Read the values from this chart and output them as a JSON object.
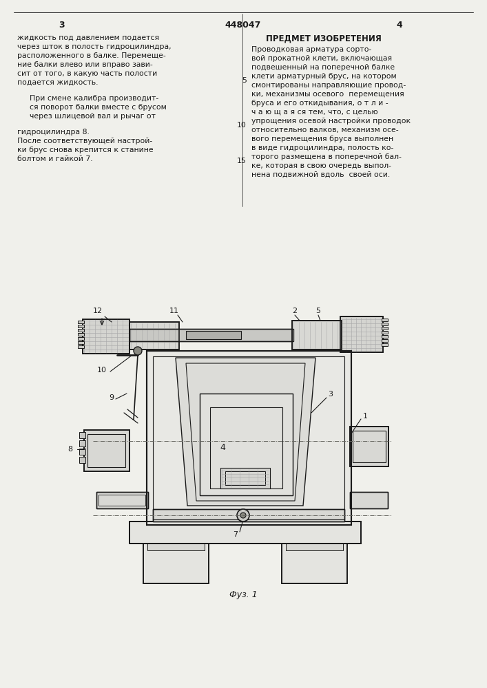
{
  "page_bg": "#f0f0eb",
  "line_color": "#1a1a1a",
  "text_color": "#1a1a1a",
  "page_number_left": "3",
  "page_number_center": "448047",
  "page_number_right": "4",
  "left_column_text": [
    "жидкость под давлением подается",
    "через шток в полость гидроцилиндра,",
    "расположенного в балке. Перемеще-",
    "ние балки влево или вправо зави-",
    "сит от того, в какую часть полости",
    "подается жидкость."
  ],
  "left_column_text2": [
    "При смене калибра производит-",
    "ся поворот балки вместе с брусом",
    "через шлицевой вал и рычаг от"
  ],
  "left_column_text3": [
    "гидроцилиндра 8.",
    "После соответствующей настрой-",
    "ки брус снова крепится к станине",
    "болтом и гайкой 7."
  ],
  "right_title": "ПРЕДМЕТ ИЗОБРЕТЕНИЯ",
  "right_column_text": [
    "Проводковая арматура сорто-",
    "вой прокатной клети, включающая",
    "подвешенный на поперечной балке",
    "клети арматурный брус, на котором",
    "смонтированы направляющие провод-",
    "ки, механизмы осевого  перемещения",
    "бруса и его откидывания, о т л и -",
    "ч а ю щ а я ся тем, что, с целью",
    "упрощения осевой настройки проводок",
    "относительно валков, механизм осе-",
    "вого перемещения бруса выполнен",
    "в виде гидроцилиндра, полость ко-",
    "торого размещена в поперечной бал-",
    "ке, которая в свою очередь выпол-",
    "нена подвижной вдоль  своей оси."
  ],
  "fig_caption": "Фуз. 1"
}
